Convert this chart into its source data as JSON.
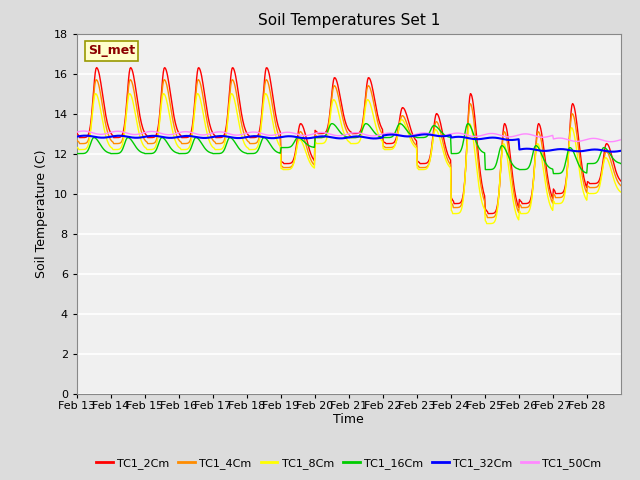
{
  "title": "Soil Temperatures Set 1",
  "xlabel": "Time",
  "ylabel": "Soil Temperature (C)",
  "ylim": [
    0,
    18
  ],
  "yticks": [
    0,
    2,
    4,
    6,
    8,
    10,
    12,
    14,
    16,
    18
  ],
  "annotation_text": "SI_met",
  "annotation_color": "#8B0000",
  "annotation_bg": "#FFFFCC",
  "annotation_border": "#999900",
  "colors": {
    "TC1_2Cm": "#FF0000",
    "TC1_4Cm": "#FF8C00",
    "TC1_8Cm": "#FFFF00",
    "TC1_16Cm": "#00CC00",
    "TC1_32Cm": "#0000FF",
    "TC1_50Cm": "#FF88FF"
  },
  "bg_color": "#DCDCDC",
  "plot_bg": "#F0F0F0",
  "grid_color": "#FFFFFF",
  "x_labels": [
    "Feb 13",
    "Feb 14",
    "Feb 15",
    "Feb 16",
    "Feb 17",
    "Feb 18",
    "Feb 19",
    "Feb 20",
    "Feb 21",
    "Feb 22",
    "Feb 23",
    "Feb 24",
    "Feb 25",
    "Feb 26",
    "Feb 27",
    "Feb 28"
  ]
}
